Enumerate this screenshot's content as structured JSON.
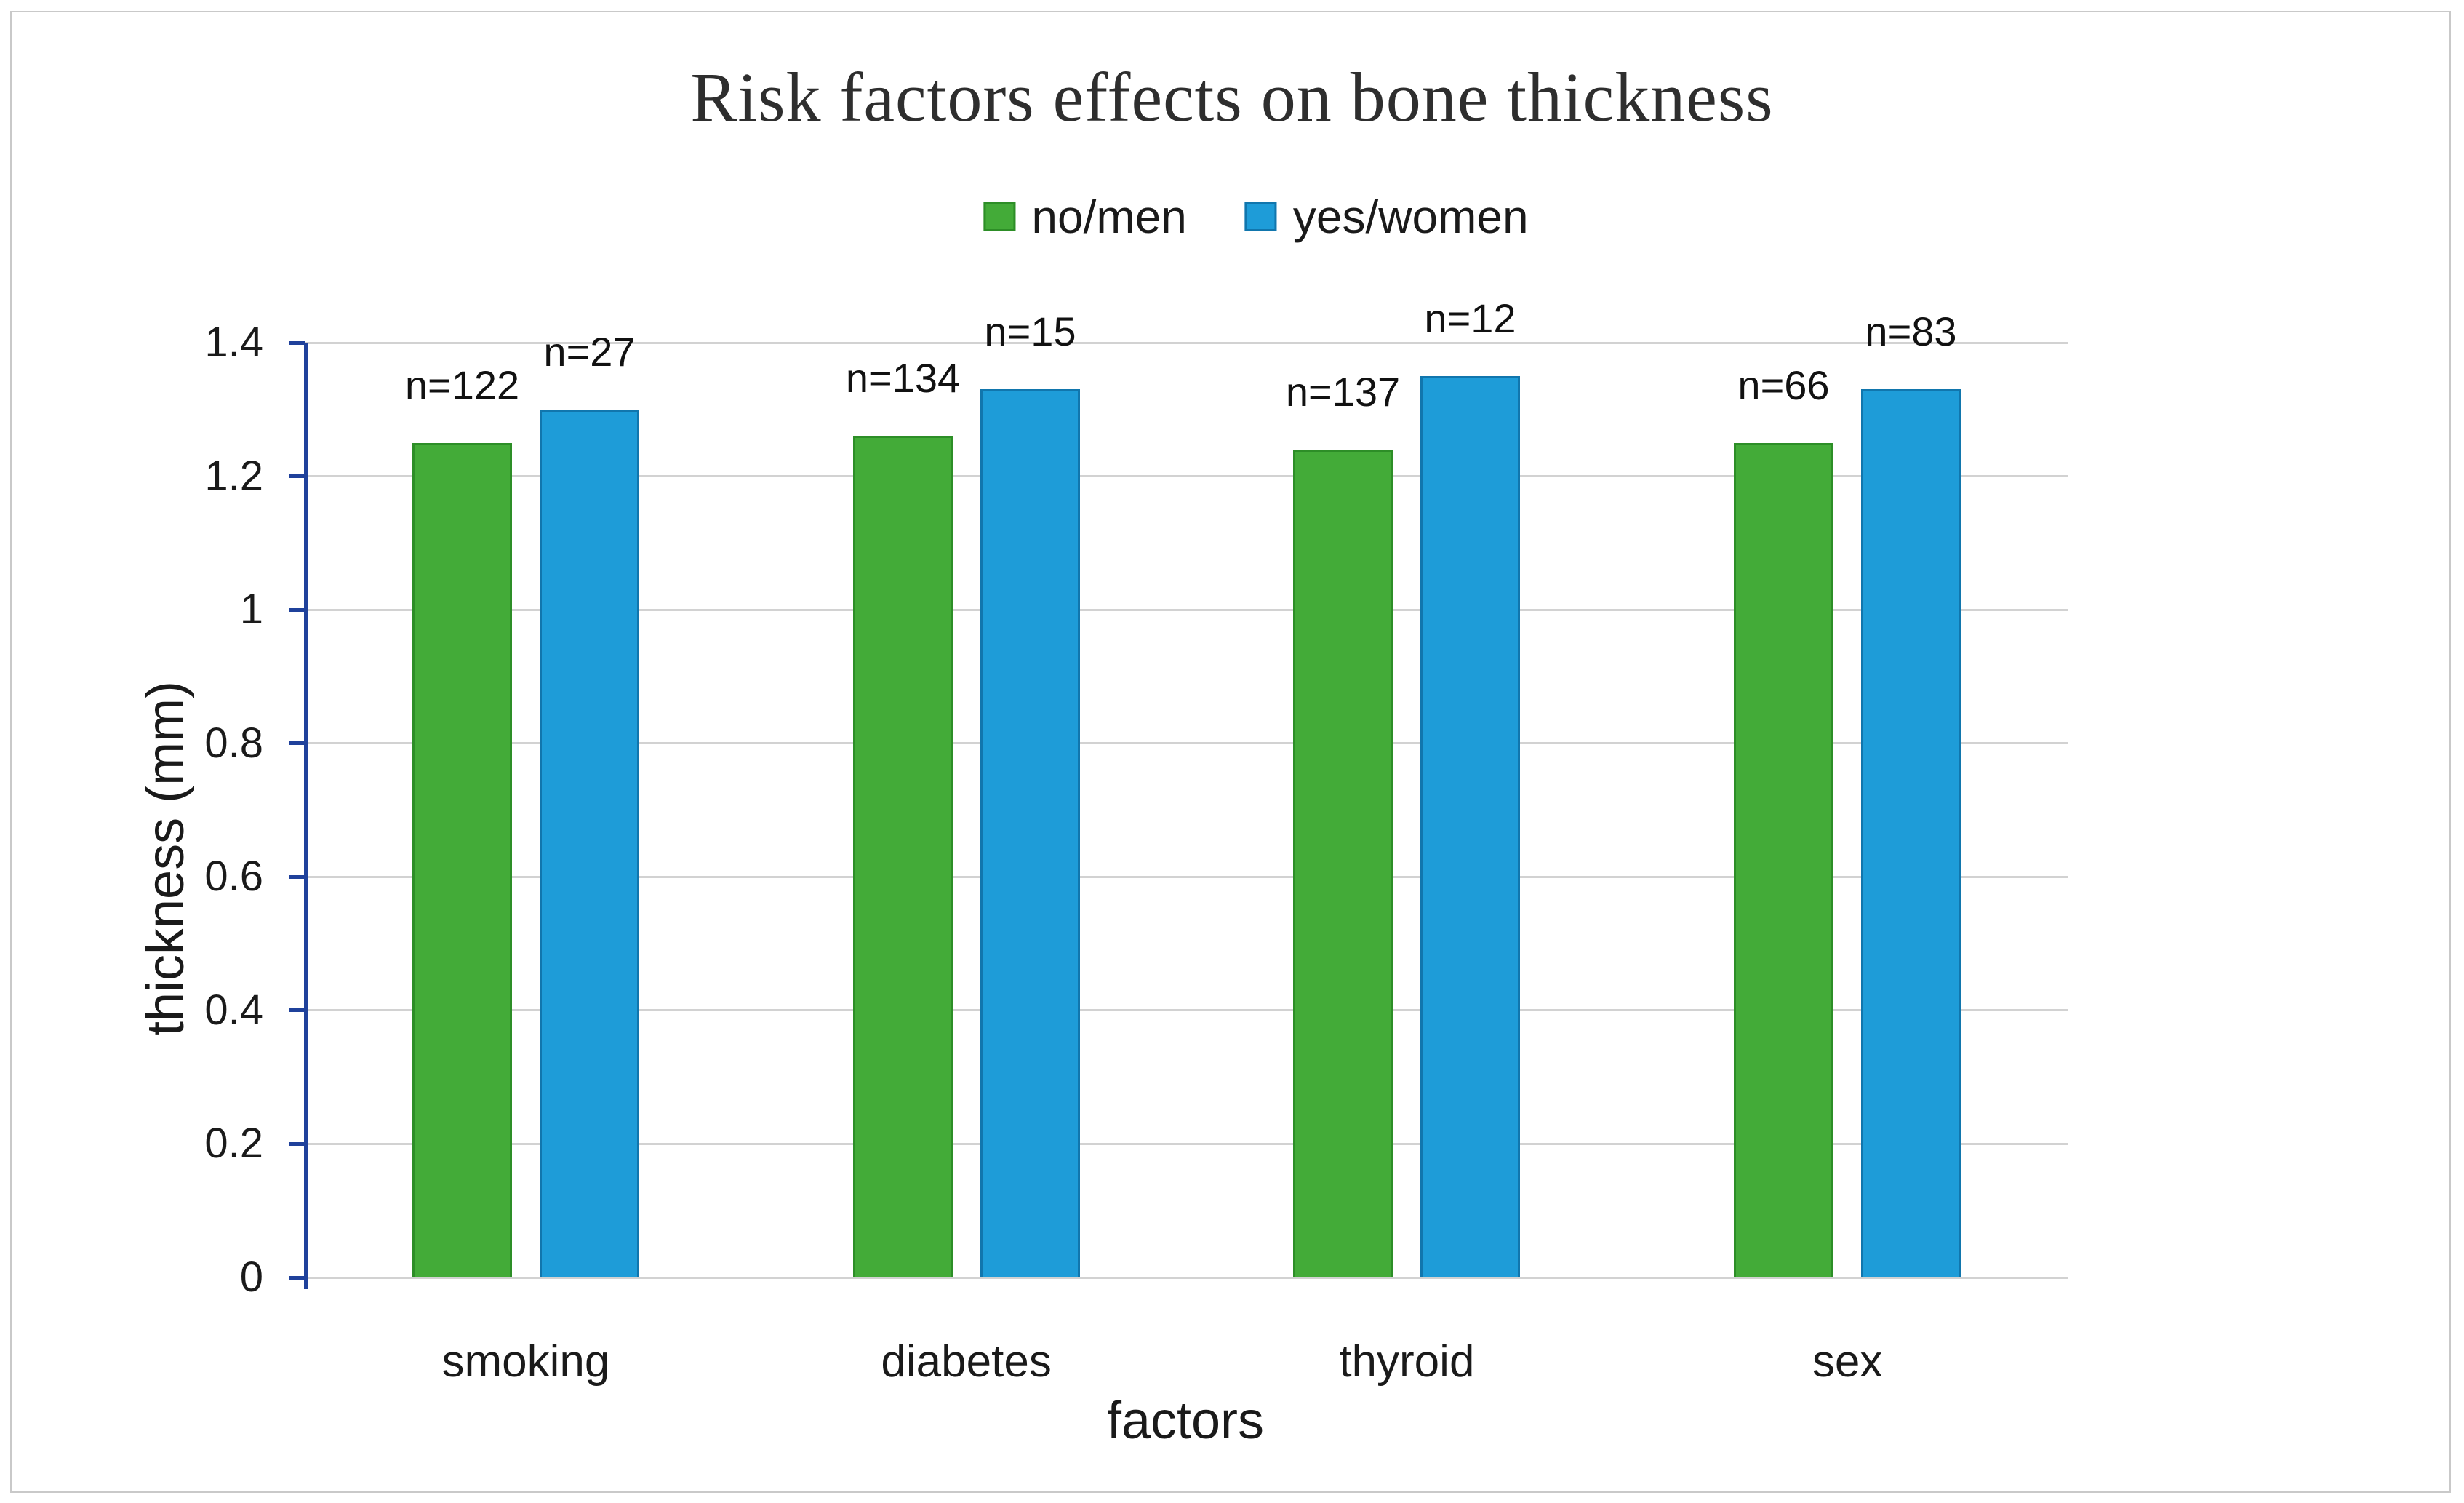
{
  "chart_data": {
    "type": "bar",
    "title": "Risk factors effects on bone thickness",
    "xlabel": "factors",
    "ylabel": "thickness (mm)",
    "categories": [
      "smoking",
      "diabetes",
      "thyroid",
      "sex"
    ],
    "series": [
      {
        "name": "no/men",
        "color": "#43ab38",
        "border_color": "#2d8e27",
        "values": [
          1.25,
          1.26,
          1.24,
          1.25
        ],
        "bar_labels": [
          "n=122",
          "n=134",
          "n=137",
          "n=66"
        ]
      },
      {
        "name": "yes/women",
        "color": "#1e9cd8",
        "border_color": "#1176ad",
        "values": [
          1.3,
          1.33,
          1.35,
          1.33
        ],
        "bar_labels": [
          "n=27",
          "n=15",
          "n=12",
          "n=83"
        ]
      }
    ],
    "ylim": [
      0,
      1.4
    ],
    "yticks": [
      {
        "value": 0,
        "label": "0"
      },
      {
        "value": 0.2,
        "label": "0.2"
      },
      {
        "value": 0.4,
        "label": "0.4"
      },
      {
        "value": 0.6,
        "label": "0.6"
      },
      {
        "value": 0.8,
        "label": "0.8"
      },
      {
        "value": 1,
        "label": "1"
      },
      {
        "value": 1.2,
        "label": "1.2"
      },
      {
        "value": 1.4,
        "label": "1.4"
      }
    ],
    "grid": true,
    "legend_position": "top-center",
    "axis_color": "#1f419b",
    "grid_color": "#d2d2d2",
    "text_color": "#1a1a1a"
  }
}
